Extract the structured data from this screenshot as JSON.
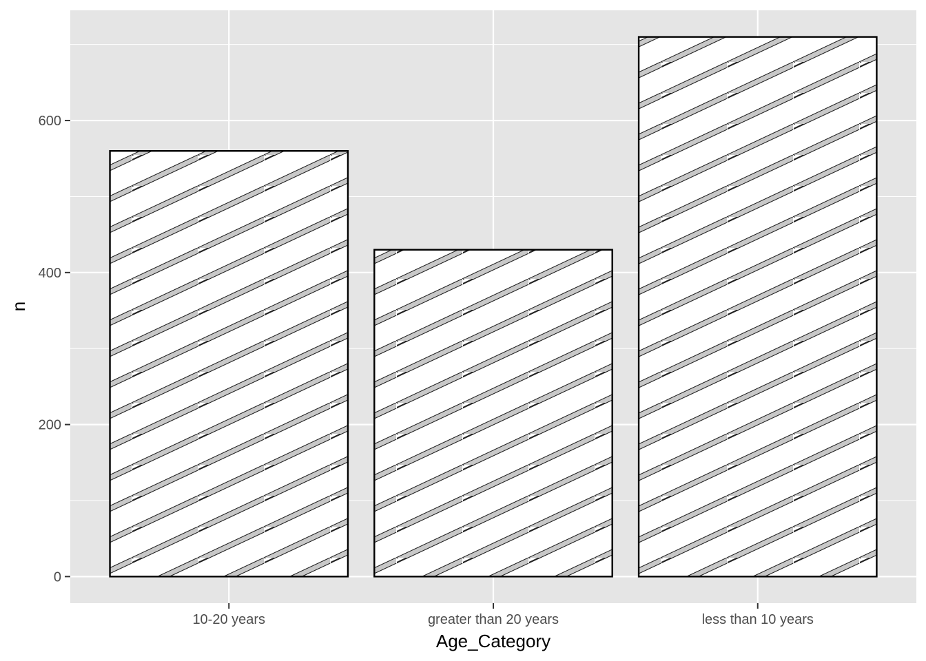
{
  "chart_data": {
    "type": "bar",
    "categories": [
      "10-20 years",
      "greater than 20 years",
      "less than 10 years"
    ],
    "values": [
      560,
      430,
      710
    ],
    "xlabel": "Age_Category",
    "ylabel": "n",
    "ylim": [
      -35,
      745
    ],
    "yticks": [
      0,
      200,
      400,
      600
    ],
    "grid": true,
    "legend": "none",
    "colors": {
      "panel_background": "#e5e5e5",
      "grid_line": "#ffffff",
      "bar_fill": "#ffffff",
      "bar_outline": "#000000",
      "hatch_fill": "#c8c8c8",
      "hatch_line": "#222222"
    },
    "pattern": "diagonal-stripe"
  }
}
